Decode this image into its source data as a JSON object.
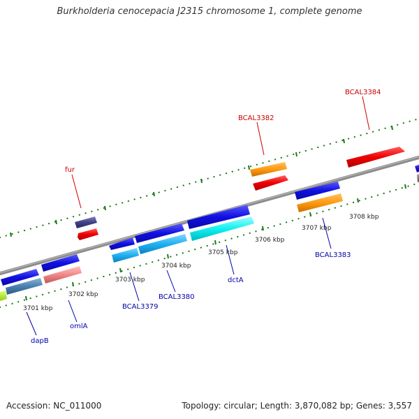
{
  "title": "Burkholderia cenocepacia J2315 chromosome 1, complete genome",
  "footer": {
    "accession": "Accession: NC_011000",
    "stats": "Topology: circular; Length: 3,870,082 bp; Genes: 3,557"
  },
  "colors": {
    "backbone": "#8c8c8c",
    "dots": "#1a7a1a",
    "label_top": "#cc0000",
    "label_bottom": "#0000aa"
  },
  "scale_labels": [
    {
      "id": "3701",
      "text": "3701 kbp"
    },
    {
      "id": "3702",
      "text": "3702 kbp"
    },
    {
      "id": "3703",
      "text": "3703 kbp"
    },
    {
      "id": "3704",
      "text": "3704 kbp"
    },
    {
      "id": "3705",
      "text": "3705 kbp"
    },
    {
      "id": "3706",
      "text": "3706 kbp"
    },
    {
      "id": "3707",
      "text": "3707 kbp"
    },
    {
      "id": "3708",
      "text": "3708 kbp"
    }
  ],
  "gene_labels": {
    "fur": "fur",
    "bcal3382": "BCAL3382",
    "bcal3384": "BCAL3384",
    "dapb": "dapB",
    "omla": "omlA",
    "bcal3379": "BCAL3379",
    "bcal3380": "BCAL3380",
    "dcta": "dctA",
    "bcal3383": "BCAL3383"
  }
}
